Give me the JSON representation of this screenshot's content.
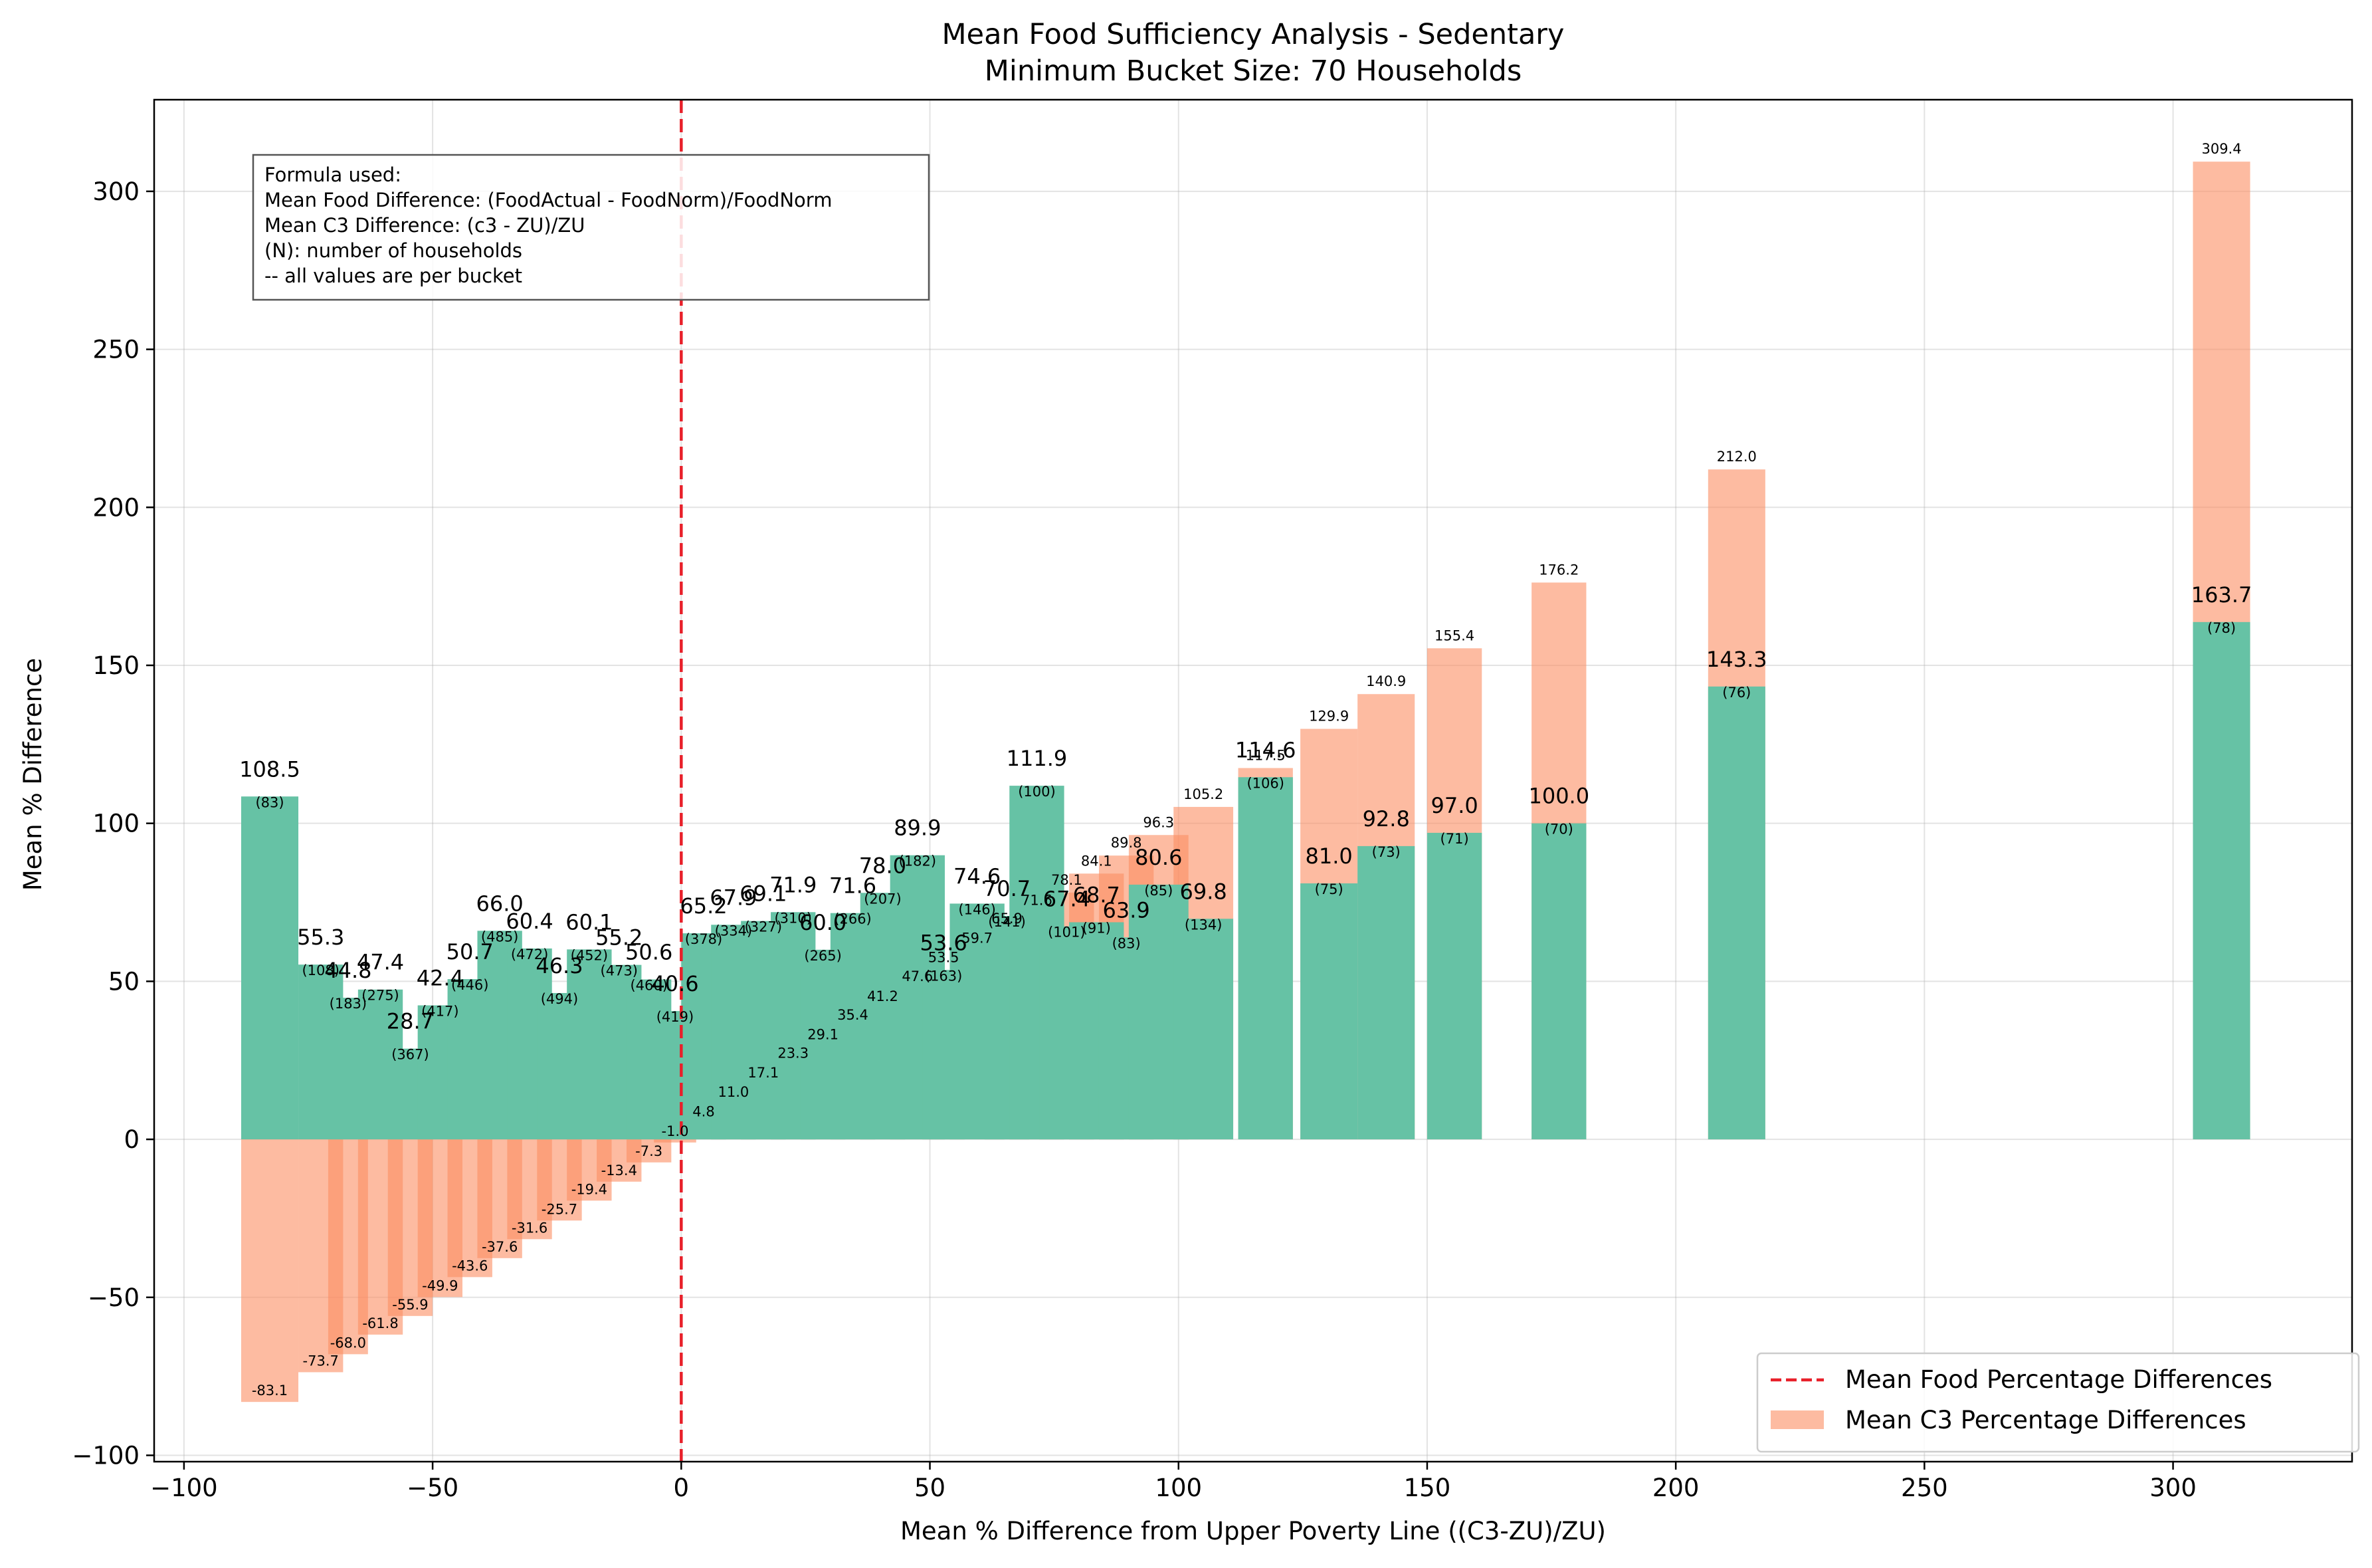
{
  "chart_data": {
    "type": "bar",
    "title": "Mean Food Sufficiency Analysis - Sedentary",
    "subtitle": "Minimum Bucket Size: 70 Households",
    "xlabel": "Mean % Difference from Upper Poverty Line ((C3-ZU)/ZU)",
    "ylabel": "Mean % Difference",
    "xlim": [
      -106,
      336
    ],
    "ylim": [
      -102,
      329
    ],
    "xticks": [
      -100,
      -50,
      0,
      50,
      100,
      150,
      200,
      250,
      300
    ],
    "yticks": [
      -100,
      -50,
      0,
      50,
      100,
      150,
      200,
      250,
      300
    ],
    "xtick_labels": [
      "−100",
      "−50",
      "0",
      "50",
      "100",
      "150",
      "200",
      "250",
      "300"
    ],
    "ytick_labels": [
      "−100",
      "−50",
      "0",
      "50",
      "100",
      "150",
      "200",
      "250",
      "300"
    ],
    "grid": true,
    "legend_position": "bottom-right",
    "reference_line": {
      "x": 0,
      "style": "dashed",
      "color": "#e8202a"
    },
    "legend": [
      {
        "label": "Mean Food Percentage Differences",
        "type": "dashed-line",
        "color": "#e8202a"
      },
      {
        "label": "Mean C3 Percentage Differences",
        "type": "patch",
        "color": "#fc8d62"
      }
    ],
    "colors": {
      "food": "#66c2a5",
      "c3": "#fc8d62",
      "vline": "#e8202a"
    },
    "annotation": [
      "Formula used:",
      "Mean Food Difference: (FoodActual - FoodNorm)/FoodNorm",
      "Mean C3 Difference: (c3 - ZU)/ZU",
      "(N): number of households",
      "-- all values are per bucket"
    ],
    "buckets": [
      {
        "x0": -88.5,
        "x1": -77,
        "food": 108.5,
        "c3": -83.1,
        "n": 83,
        "food_label": "108.5",
        "n_label": "(83)",
        "c3_label": "-83.1"
      },
      {
        "x0": -77,
        "x1": -68,
        "food": 55.3,
        "c3": -73.7,
        "n": 108,
        "food_label": "55.3",
        "n_label": "(108)",
        "c3_label": "-73.7"
      },
      {
        "x0": -71,
        "x1": -63,
        "food": 44.8,
        "c3": -68.0,
        "n": 183,
        "food_label": "44.8",
        "n_label": "(183)",
        "c3_label": "-68.0"
      },
      {
        "x0": -65,
        "x1": -56,
        "food": 47.4,
        "c3": -61.8,
        "n": 275,
        "food_label": "47.4",
        "n_label": "(275)",
        "c3_label": "-61.8"
      },
      {
        "x0": -59,
        "x1": -50,
        "food": 28.7,
        "c3": -55.9,
        "n": 367,
        "food_label": "28.7",
        "n_label": "(367)",
        "c3_label": "-55.9"
      },
      {
        "x0": -53,
        "x1": -44,
        "food": 42.4,
        "c3": -49.9,
        "n": 417,
        "food_label": "42.4",
        "n_label": "(417)",
        "c3_label": "-49.9"
      },
      {
        "x0": -47,
        "x1": -38,
        "food": 50.7,
        "c3": -43.6,
        "n": 446,
        "food_label": "50.7",
        "n_label": "(446)",
        "c3_label": "-43.6"
      },
      {
        "x0": -41,
        "x1": -32,
        "food": 66.0,
        "c3": -37.6,
        "n": 485,
        "food_label": "66.0",
        "n_label": "(485)",
        "c3_label": "-37.6"
      },
      {
        "x0": -35,
        "x1": -26,
        "food": 60.4,
        "c3": -31.6,
        "n": 472,
        "food_label": "60.4",
        "n_label": "(472)",
        "c3_label": "-31.6"
      },
      {
        "x0": -29,
        "x1": -20,
        "food": 46.3,
        "c3": -25.7,
        "n": 494,
        "food_label": "46.3",
        "n_label": "(494)",
        "c3_label": "-25.7"
      },
      {
        "x0": -23,
        "x1": -14,
        "food": 60.1,
        "c3": -19.4,
        "n": 452,
        "food_label": "60.1",
        "n_label": "(452)",
        "c3_label": "-19.4"
      },
      {
        "x0": -17,
        "x1": -8,
        "food": 55.2,
        "c3": -13.4,
        "n": 473,
        "food_label": "55.2",
        "n_label": "(473)",
        "c3_label": "-13.4"
      },
      {
        "x0": -11,
        "x1": -2,
        "food": 50.6,
        "c3": -7.3,
        "n": 460,
        "food_label": "50.6",
        "n_label": "(460)",
        "c3_label": "-7.3"
      },
      {
        "x0": -5.5,
        "x1": 3,
        "food": 40.6,
        "c3": -1.0,
        "n": 419,
        "food_label": "40.6",
        "n_label": "(419)",
        "c3_label": "-1.0"
      },
      {
        "x0": 0,
        "x1": 9,
        "food": 65.2,
        "c3": 4.8,
        "n": 378,
        "food_label": "65.2",
        "n_label": "(378)",
        "c3_label": "4.8"
      },
      {
        "x0": 6,
        "x1": 15,
        "food": 67.9,
        "c3": 11.0,
        "n": 334,
        "food_label": "67.9",
        "n_label": "(334)",
        "c3_label": "11.0"
      },
      {
        "x0": 12,
        "x1": 21,
        "food": 69.1,
        "c3": 17.1,
        "n": 327,
        "food_label": "69.1",
        "n_label": "(327)",
        "c3_label": "17.1"
      },
      {
        "x0": 18,
        "x1": 27,
        "food": 71.9,
        "c3": 23.3,
        "n": 310,
        "food_label": "71.9",
        "n_label": "(310)",
        "c3_label": "23.3"
      },
      {
        "x0": 24,
        "x1": 33,
        "food": 60.0,
        "c3": 29.1,
        "n": 265,
        "food_label": "60.0",
        "n_label": "(265)",
        "c3_label": "29.1"
      },
      {
        "x0": 30,
        "x1": 39,
        "food": 71.6,
        "c3": 35.4,
        "n": 266,
        "food_label": "71.6",
        "n_label": "(266)",
        "c3_label": "35.4"
      },
      {
        "x0": 36,
        "x1": 45,
        "food": 78.0,
        "c3": 41.2,
        "n": 207,
        "food_label": "78.0",
        "n_label": "(207)",
        "c3_label": "41.2"
      },
      {
        "x0": 42,
        "x1": 53,
        "food": 89.9,
        "c3": 47.6,
        "n": 182,
        "food_label": "89.9",
        "n_label": "(182)",
        "c3_label": "47.6"
      },
      {
        "x0": 48.5,
        "x1": 57,
        "food": 53.6,
        "c3": 53.5,
        "n": 163,
        "food_label": "53.6",
        "n_label": "(163)",
        "c3_label": "53.5"
      },
      {
        "x0": 54,
        "x1": 65,
        "food": 74.6,
        "c3": 59.7,
        "n": 146,
        "food_label": "74.6",
        "n_label": "(146)",
        "c3_label": "59.7"
      },
      {
        "x0": 61,
        "x1": 70,
        "food": 70.7,
        "c3": 65.9,
        "n": 141,
        "food_label": "70.7",
        "n_label": "(141)",
        "c3_label": "65.9"
      },
      {
        "x0": 66,
        "x1": 77,
        "food": 111.9,
        "c3": 71.6,
        "n": 100,
        "food_label": "111.9",
        "n_label": "(100)",
        "c3_label": "71.6"
      },
      {
        "x0": 72,
        "x1": 83,
        "food": 67.4,
        "c3": 78.1,
        "n": 101,
        "food_label": "67.4",
        "n_label": "(101)",
        "c3_label": "78.1"
      },
      {
        "x0": 78,
        "x1": 89,
        "food": 68.7,
        "c3": 84.1,
        "n": 91,
        "food_label": "68.7",
        "n_label": "(91)",
        "c3_label": "84.1"
      },
      {
        "x0": 84,
        "x1": 95,
        "food": 63.9,
        "c3": 89.8,
        "n": 83,
        "food_label": "63.9",
        "n_label": "(83)",
        "c3_label": "89.8"
      },
      {
        "x0": 90,
        "x1": 102,
        "food": 80.6,
        "c3": 96.3,
        "n": 85,
        "food_label": "80.6",
        "n_label": "(85)",
        "c3_label": "96.3"
      },
      {
        "x0": 99,
        "x1": 111,
        "food": 69.8,
        "c3": 105.2,
        "n": 134,
        "food_label": "69.8",
        "n_label": "(134)",
        "c3_label": "105.2"
      },
      {
        "x0": 112,
        "x1": 123,
        "food": 114.6,
        "c3": 117.5,
        "n": 106,
        "food_label": "114.6",
        "n_label": "(106)",
        "c3_label": "117.5"
      },
      {
        "x0": 124.5,
        "x1": 136,
        "food": 81.0,
        "c3": 129.9,
        "n": 75,
        "food_label": "81.0",
        "n_label": "(75)",
        "c3_label": "129.9"
      },
      {
        "x0": 136,
        "x1": 147.5,
        "food": 92.8,
        "c3": 140.9,
        "n": 73,
        "food_label": "92.8",
        "n_label": "(73)",
        "c3_label": "140.9"
      },
      {
        "x0": 150,
        "x1": 161,
        "food": 97.0,
        "c3": 155.4,
        "n": 71,
        "food_label": "97.0",
        "n_label": "(71)",
        "c3_label": "155.4"
      },
      {
        "x0": 171,
        "x1": 182,
        "food": 100.0,
        "c3": 176.2,
        "n": 70,
        "food_label": "100.0",
        "n_label": "(70)",
        "c3_label": "176.2"
      },
      {
        "x0": 206.5,
        "x1": 218,
        "food": 143.3,
        "c3": 212.0,
        "n": 76,
        "food_label": "143.3",
        "n_label": "(76)",
        "c3_label": "212.0"
      },
      {
        "x0": 304,
        "x1": 315.5,
        "food": 163.7,
        "c3": 309.4,
        "n": 78,
        "food_label": "163.7",
        "n_label": "(78)",
        "c3_label": "309.4"
      }
    ]
  }
}
